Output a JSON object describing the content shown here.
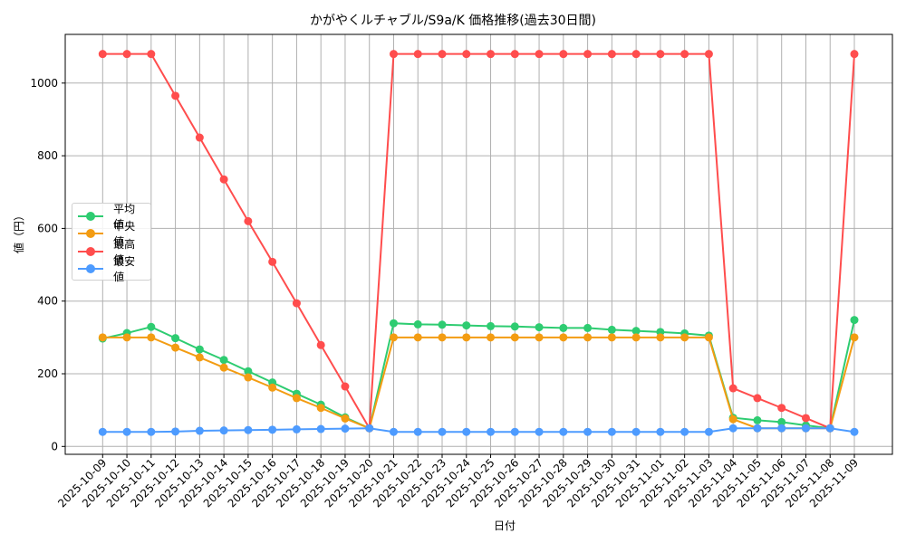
{
  "chart_data": {
    "type": "line",
    "title": "かがやくルチャブル/S9a/K 価格推移(過去30日間)",
    "xlabel": "日付",
    "ylabel": "値（円）",
    "ylim": [
      -15,
      1130
    ],
    "yticks": [
      0,
      200,
      400,
      600,
      800,
      1000
    ],
    "grid": true,
    "legend_position": "center left",
    "x": [
      "2025-10-09",
      "2025-10-10",
      "2025-10-11",
      "2025-10-12",
      "2025-10-13",
      "2025-10-14",
      "2025-10-15",
      "2025-10-16",
      "2025-10-17",
      "2025-10-18",
      "2025-10-19",
      "2025-10-20",
      "2025-10-21",
      "2025-10-22",
      "2025-10-23",
      "2025-10-24",
      "2025-10-25",
      "2025-10-26",
      "2025-10-27",
      "2025-10-28",
      "2025-10-29",
      "2025-10-30",
      "2025-10-31",
      "2025-11-01",
      "2025-11-02",
      "2025-11-03",
      "2025-11-04",
      "2025-11-05",
      "2025-11-06",
      "2025-11-07",
      "2025-11-08",
      "2025-11-09"
    ],
    "series": [
      {
        "name": "平均値",
        "color": "#2ecc71",
        "values": [
          297,
          312,
          329,
          298,
          267,
          238,
          207,
          176,
          145,
          115,
          80,
          50,
          339,
          336,
          335,
          333,
          331,
          330,
          328,
          326,
          326,
          321,
          318,
          315,
          311,
          305,
          79,
          72,
          67,
          58,
          50,
          348
        ]
      },
      {
        "name": "中央値",
        "color": "#f39c12",
        "values": [
          300,
          300,
          300,
          272,
          245,
          217,
          190,
          162,
          133,
          106,
          77,
          50,
          300,
          300,
          300,
          300,
          300,
          300,
          300,
          300,
          300,
          300,
          300,
          300,
          300,
          300,
          75,
          50,
          50,
          50,
          50,
          300
        ]
      },
      {
        "name": "最高値",
        "color": "#ff4d4d",
        "values": [
          1080,
          1080,
          1080,
          965,
          850,
          735,
          620,
          508,
          394,
          279,
          165,
          50,
          1080,
          1080,
          1080,
          1080,
          1080,
          1080,
          1080,
          1080,
          1080,
          1080,
          1080,
          1080,
          1080,
          1080,
          160,
          133,
          106,
          78,
          50,
          1080
        ]
      },
      {
        "name": "最安値",
        "color": "#4d9bff",
        "values": [
          40,
          40,
          40,
          41,
          43,
          44,
          45,
          46,
          47,
          48,
          49,
          50,
          40,
          40,
          40,
          40,
          40,
          40,
          40,
          40,
          40,
          40,
          40,
          40,
          40,
          40,
          50,
          50,
          50,
          50,
          50,
          40
        ]
      }
    ]
  },
  "legend": {
    "items": [
      {
        "label": "平均値",
        "color": "#2ecc71"
      },
      {
        "label": "中央値",
        "color": "#f39c12"
      },
      {
        "label": "最高値",
        "color": "#ff4d4d"
      },
      {
        "label": "最安値",
        "color": "#4d9bff"
      }
    ]
  }
}
